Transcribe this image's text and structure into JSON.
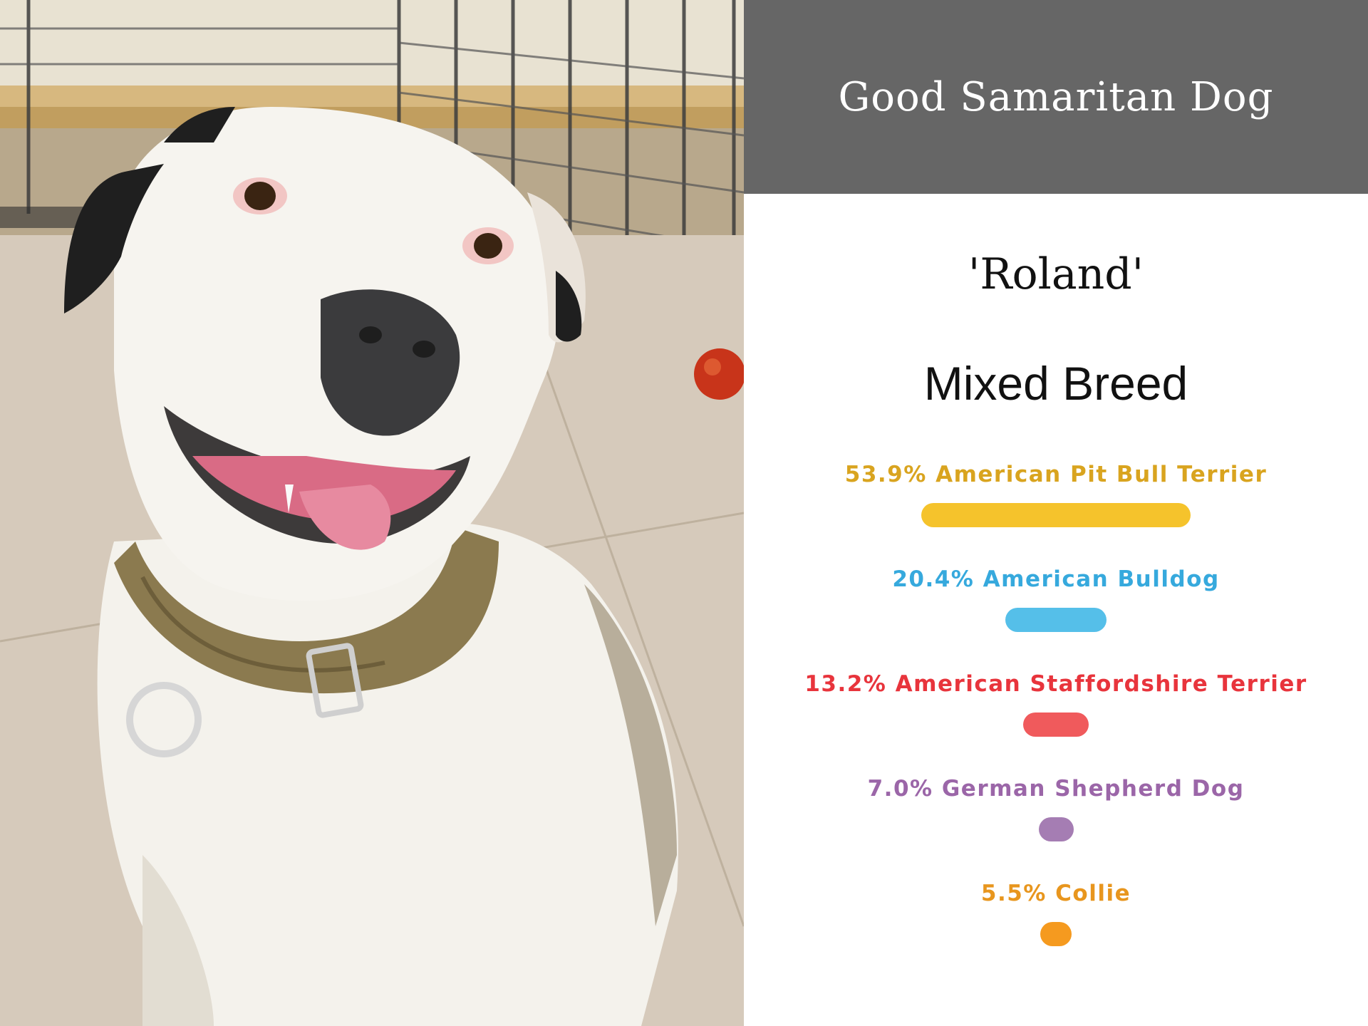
{
  "header": {
    "title": "Good Samaritan Dog"
  },
  "dog": {
    "name": "'Roland'",
    "breed_type": "Mixed Breed"
  },
  "photo": {
    "subject": "white pit bull dog with brown collar"
  },
  "chart_data": {
    "type": "bar",
    "orientation": "horizontal",
    "bar_alignment": "center",
    "categories": [
      "American Pit Bull Terrier",
      "American Bulldog",
      "American Staffordshire Terrier",
      "German Shepherd Dog",
      "Collie"
    ],
    "values": [
      53.9,
      20.4,
      13.2,
      7.0,
      5.5
    ],
    "labels": [
      "53.9% American Pit Bull Terrier",
      "20.4% American Bulldog",
      "13.2% American Staffordshire Terrier",
      "7.0% German Shepherd Dog",
      "5.5% Collie"
    ],
    "colors": [
      "#f5c32c",
      "#55bfe9",
      "#f05a5c",
      "#a57db3",
      "#f59a1f"
    ],
    "label_colors": [
      "#d9a41f",
      "#36a9dd",
      "#e8343c",
      "#9b66a8",
      "#e8961e"
    ],
    "unit": "%",
    "xlim": [
      0,
      100
    ],
    "grid": false
  }
}
